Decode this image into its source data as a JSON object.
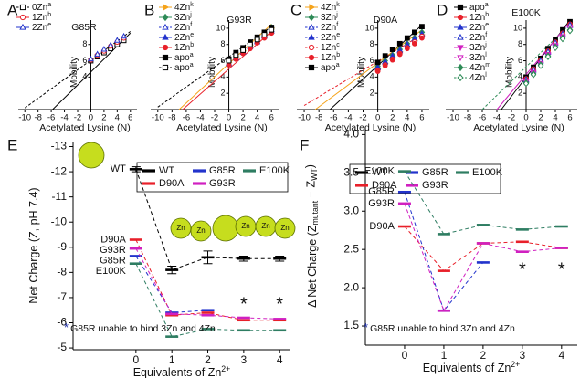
{
  "chart_data": [
    {
      "panel": "A",
      "type": "scatter",
      "title": "G85R",
      "xlabel": "Acetylated Lysine (N)",
      "ylabel": "Mobility",
      "xlim": [
        -11,
        7
      ],
      "ylim": [
        0,
        11
      ],
      "xticks": [
        -10,
        -8,
        -6,
        -4,
        -2,
        0,
        2,
        4,
        6
      ],
      "yticks": [
        4,
        6,
        8
      ],
      "series": [
        {
          "name": "0Zn",
          "note": "a",
          "color": "#000000",
          "marker": "square",
          "filled": false,
          "dash": true,
          "x": [
            0,
            1,
            2,
            3,
            4,
            5
          ],
          "values": [
            6.0,
            6.5,
            7.0,
            7.5,
            8.0,
            8.5
          ]
        },
        {
          "name": "1Zn",
          "note": "b",
          "color": "#e8202a",
          "marker": "circle",
          "filled": false,
          "dash": false,
          "x": [
            0,
            1,
            2,
            3,
            4,
            5
          ],
          "values": [
            6.1,
            6.7,
            7.2,
            7.8,
            8.3,
            8.8
          ]
        },
        {
          "name": "2Zn",
          "note": "e",
          "color": "#2233cc",
          "marker": "triangle",
          "filled": false,
          "dash": false,
          "x": [
            0,
            1,
            2,
            3,
            4,
            5
          ],
          "values": [
            6.2,
            6.8,
            7.4,
            7.9,
            8.5,
            9.0
          ]
        }
      ],
      "fits": [
        {
          "color": "#000000",
          "dash": true,
          "x": [
            -10,
            6
          ],
          "values": [
            0.2,
            9.6
          ]
        },
        {
          "color": "#000000",
          "dash": false,
          "x": [
            -5.8,
            6
          ],
          "values": [
            0,
            9.4
          ]
        }
      ]
    },
    {
      "panel": "B",
      "type": "scatter",
      "title": "G93R",
      "xlabel": "Acetylated Lysine (N)",
      "ylabel": "Mobility",
      "xlim": [
        -11,
        7
      ],
      "ylim": [
        0,
        11
      ],
      "xticks": [
        -10,
        -8,
        -6,
        -4,
        -2,
        0,
        2,
        4,
        6
      ],
      "yticks": [
        2,
        4,
        6,
        8,
        10
      ],
      "series": [
        {
          "name": "4Zn",
          "note": "k",
          "color": "#f5a31a",
          "marker": "right",
          "filled": true,
          "dash": false,
          "x": [
            0,
            1,
            2,
            3,
            4,
            5,
            6
          ],
          "values": [
            5.8,
            6.5,
            7.2,
            7.9,
            8.6,
            9.3,
            10.0
          ]
        },
        {
          "name": "3Zn",
          "note": "j",
          "color": "#2e8b57",
          "marker": "diamond",
          "filled": true,
          "dash": false,
          "x": [
            0,
            1,
            2,
            3,
            4,
            5,
            6
          ],
          "values": [
            5.9,
            6.6,
            7.3,
            8.0,
            8.7,
            9.4,
            10.1
          ]
        },
        {
          "name": "2Zn",
          "note": "f",
          "color": "#2233cc",
          "marker": "triangle",
          "filled": false,
          "dash": true,
          "x": [
            0,
            1,
            2,
            3,
            4,
            5,
            6
          ],
          "values": [
            5.7,
            6.4,
            7.1,
            7.8,
            8.4,
            9.1,
            9.8
          ]
        },
        {
          "name": "2Zn",
          "note": "e",
          "color": "#2233cc",
          "marker": "triangle",
          "filled": true,
          "dash": false,
          "x": [
            0,
            1,
            2,
            3,
            4,
            5,
            6
          ],
          "values": [
            5.6,
            6.3,
            7.0,
            7.7,
            8.3,
            9.0,
            9.6
          ]
        },
        {
          "name": "1Zn",
          "note": "b",
          "color": "#e8202a",
          "marker": "circle",
          "filled": true,
          "dash": false,
          "x": [
            0,
            1,
            2,
            3,
            4,
            5,
            6
          ],
          "values": [
            5.5,
            6.2,
            6.9,
            7.5,
            8.2,
            8.8,
            9.4
          ]
        },
        {
          "name": "apo",
          "note": "a",
          "color": "#000000",
          "marker": "square",
          "filled": true,
          "dash": false,
          "x": [
            0,
            1,
            2,
            3,
            4,
            5,
            6
          ],
          "values": [
            6.2,
            7.0,
            7.6,
            8.3,
            8.9,
            9.5,
            10.1
          ]
        },
        {
          "name": "apo",
          "note": "a",
          "color": "#000000",
          "marker": "square",
          "filled": false,
          "dash": true,
          "x": [
            0,
            1,
            2,
            3,
            4,
            5,
            6
          ],
          "values": [
            6.0,
            6.7,
            7.3,
            8.0,
            8.6,
            9.2,
            9.8
          ]
        }
      ],
      "fits": [
        {
          "color": "#000000",
          "dash": true,
          "x": [
            -10,
            6
          ],
          "values": [
            0.3,
            10.2
          ]
        },
        {
          "color": "#f5a31a",
          "dash": false,
          "x": [
            -7,
            6
          ],
          "values": [
            0,
            10.5
          ]
        },
        {
          "color": "#e8202a",
          "dash": false,
          "x": [
            -6.5,
            6
          ],
          "values": [
            0,
            9.6
          ]
        }
      ]
    },
    {
      "panel": "C",
      "type": "scatter",
      "title": "D90A",
      "xlabel": "Acetylated Lysine (N)",
      "ylabel": "Mobility",
      "xlim": [
        -11,
        7
      ],
      "ylim": [
        0,
        11
      ],
      "xticks": [
        -10,
        -8,
        -6,
        -4,
        -2,
        0,
        2,
        4,
        6
      ],
      "yticks": [
        2,
        4,
        6,
        8,
        10
      ],
      "series": [
        {
          "name": "4Zn",
          "note": "k",
          "color": "#f5a31a",
          "marker": "right",
          "filled": true,
          "dash": false,
          "x": [
            0,
            1,
            2,
            3,
            4,
            5,
            6
          ],
          "values": [
            5.0,
            5.7,
            6.4,
            7.1,
            7.8,
            8.5,
            9.2
          ]
        },
        {
          "name": "3Zn",
          "note": "j",
          "color": "#2e8b57",
          "marker": "diamond",
          "filled": true,
          "dash": false,
          "x": [
            0,
            1,
            2,
            3,
            4,
            5,
            6
          ],
          "values": [
            5.3,
            6.0,
            6.7,
            7.4,
            8.1,
            8.8,
            9.5
          ]
        },
        {
          "name": "2Zn",
          "note": "f",
          "color": "#2233cc",
          "marker": "triangle",
          "filled": false,
          "dash": true,
          "x": [
            0,
            1,
            2,
            3,
            4,
            5,
            6
          ],
          "values": [
            5.2,
            5.9,
            6.6,
            7.3,
            8.0,
            8.7,
            9.3
          ]
        },
        {
          "name": "2Zn",
          "note": "e",
          "color": "#2233cc",
          "marker": "triangle",
          "filled": true,
          "dash": true,
          "x": [
            0,
            1,
            2,
            3,
            4,
            5,
            6
          ],
          "values": [
            5.1,
            5.8,
            6.5,
            7.2,
            7.9,
            8.6,
            9.2
          ]
        },
        {
          "name": "1Zn",
          "note": "c",
          "color": "#e8202a",
          "marker": "circle",
          "filled": false,
          "dash": true,
          "x": [
            0,
            1,
            2,
            3,
            4,
            5,
            6
          ],
          "values": [
            4.8,
            5.5,
            6.2,
            6.9,
            7.6,
            8.3,
            9.0
          ]
        },
        {
          "name": "1Zn",
          "note": "b",
          "color": "#e8202a",
          "marker": "circle",
          "filled": true,
          "dash": false,
          "x": [
            0,
            1,
            2,
            3,
            4,
            5,
            6
          ],
          "values": [
            4.7,
            5.4,
            6.1,
            6.8,
            7.5,
            8.1,
            8.8
          ]
        },
        {
          "name": "apo",
          "note": "a",
          "color": "#000000",
          "marker": "square",
          "filled": true,
          "dash": false,
          "x": [
            0,
            1,
            2,
            3,
            4,
            5,
            6
          ],
          "values": [
            5.8,
            6.6,
            7.4,
            8.1,
            8.8,
            9.5,
            10.2
          ]
        }
      ],
      "fits": [
        {
          "color": "#000000",
          "dash": false,
          "x": [
            -6.5,
            6
          ],
          "values": [
            0,
            10.4
          ]
        },
        {
          "color": "#f5a31a",
          "dash": false,
          "x": [
            -8.5,
            6
          ],
          "values": [
            0,
            9.8
          ]
        },
        {
          "color": "#e8202a",
          "dash": true,
          "x": [
            -10,
            6
          ],
          "values": [
            0.5,
            9.2
          ]
        }
      ]
    },
    {
      "panel": "D",
      "type": "scatter",
      "title": "E100K",
      "xlabel": "Acetylated Lysine (N)",
      "ylabel": "Mobility",
      "xlim": [
        -11,
        7
      ],
      "ylim": [
        0,
        11
      ],
      "xticks": [
        -10,
        -8,
        -6,
        -4,
        -2,
        0,
        2,
        4,
        6
      ],
      "yticks": [
        2,
        4,
        6,
        8,
        10
      ],
      "series": [
        {
          "name": "apo",
          "note": "a",
          "color": "#000000",
          "marker": "square",
          "filled": true,
          "dash": false,
          "x": [
            0,
            1,
            2,
            3,
            4,
            5,
            6
          ],
          "values": [
            4.0,
            5.2,
            6.3,
            7.5,
            8.6,
            9.8,
            10.8
          ]
        },
        {
          "name": "1Zn",
          "note": "b",
          "color": "#e8202a",
          "marker": "circle",
          "filled": true,
          "dash": false,
          "x": [
            0,
            1,
            2,
            3,
            4,
            5,
            6
          ],
          "values": [
            3.8,
            5.0,
            6.1,
            7.2,
            8.3,
            9.4,
            10.5
          ]
        },
        {
          "name": "2Zn",
          "note": "e",
          "color": "#2233cc",
          "marker": "triangle",
          "filled": true,
          "dash": false,
          "x": [
            0,
            1,
            2,
            3,
            4,
            5,
            6
          ],
          "values": [
            3.6,
            4.8,
            5.9,
            7.0,
            8.1,
            9.2,
            10.3
          ]
        },
        {
          "name": "2Zn",
          "note": "f",
          "color": "#2233cc",
          "marker": "triangle",
          "filled": false,
          "dash": true,
          "x": [
            0,
            1,
            2,
            3,
            4,
            5,
            6
          ],
          "values": [
            3.7,
            4.9,
            6.0,
            7.1,
            8.2,
            9.3,
            10.4
          ]
        },
        {
          "name": "3Zn",
          "note": "j",
          "color": "#d020c0",
          "marker": "down",
          "filled": true,
          "dash": false,
          "x": [
            0,
            1,
            2,
            3,
            4,
            5,
            6
          ],
          "values": [
            3.5,
            4.6,
            5.7,
            6.8,
            7.9,
            9.0,
            10.1
          ]
        },
        {
          "name": "3Zn",
          "note": "l",
          "color": "#d020c0",
          "marker": "down",
          "filled": false,
          "dash": true,
          "x": [
            0,
            1,
            2,
            3,
            4,
            5,
            6
          ],
          "values": [
            3.4,
            4.5,
            5.6,
            6.7,
            7.8,
            8.9,
            10.0
          ]
        },
        {
          "name": "4Zn",
          "note": "m",
          "color": "#2e8b57",
          "marker": "diamond",
          "filled": true,
          "dash": false,
          "x": [
            0,
            1,
            2,
            3,
            4,
            5,
            6
          ],
          "values": [
            3.3,
            4.4,
            5.5,
            6.6,
            7.7,
            8.8,
            9.8
          ]
        },
        {
          "name": "4Zn",
          "note": "l",
          "color": "#2e8b57",
          "marker": "diamond",
          "filled": false,
          "dash": true,
          "x": [
            0,
            1,
            2,
            3,
            4,
            5,
            6
          ],
          "values": [
            3.2,
            4.3,
            5.4,
            6.5,
            7.6,
            8.7,
            9.7
          ]
        }
      ],
      "fits": [
        {
          "color": "#000000",
          "dash": false,
          "x": [
            -3.4,
            6
          ],
          "values": [
            0,
            11
          ]
        },
        {
          "color": "#2e8b57",
          "dash": true,
          "x": [
            -6,
            6
          ],
          "values": [
            0,
            10.5
          ]
        },
        {
          "color": "#d020c0",
          "dash": false,
          "x": [
            -4,
            6
          ],
          "values": [
            0,
            10.8
          ]
        }
      ]
    },
    {
      "panel": "E",
      "type": "line",
      "ylabel": "Net Charge (Z, pH 7.4)",
      "xlabel": [
        "Equivalents of Zn",
        "2+"
      ],
      "x": [
        0,
        1,
        2,
        3,
        4
      ],
      "xlim": [
        -1.75,
        4.3
      ],
      "xticks": [
        0,
        1,
        2,
        3,
        4
      ],
      "ylim": [
        -4.93,
        -13.2
      ],
      "yticks": [
        -13,
        -12,
        -11,
        -10,
        -9,
        -8,
        -7,
        -6,
        -5
      ],
      "series": [
        {
          "name": "WT",
          "color": "#000000",
          "values": [
            -12.1,
            -8.1,
            -8.6,
            -8.55,
            -8.55
          ],
          "errors": [
            0.1,
            0.15,
            0.25,
            0.1,
            0.1
          ]
        },
        {
          "name": "D90A",
          "color": "#e8202a",
          "values": [
            -9.3,
            -6.3,
            -6.4,
            -6.1,
            -6.1
          ]
        },
        {
          "name": "G85R",
          "color": "#2233cc",
          "values": [
            -8.65,
            -6.4,
            -6.5,
            null,
            null
          ]
        },
        {
          "name": "G93R",
          "color": "#d020c0",
          "values": [
            -8.95,
            -6.35,
            -6.3,
            -6.2,
            -6.15
          ]
        },
        {
          "name": "E100K",
          "color": "#2e7d62",
          "values": [
            -8.35,
            -5.45,
            -5.75,
            -5.7,
            -5.7
          ]
        }
      ],
      "asterisk": "*",
      "asterisk_x": [
        3,
        4
      ],
      "note": "G85R unable to bind 3Zn and 4Zn",
      "cartoon_text": "Zn"
    },
    {
      "panel": "F",
      "type": "line",
      "ylabel": [
        "Δ Net Charge (Z",
        "mutant",
        " − Z",
        "WT",
        ")"
      ],
      "xlabel": [
        "Equivalents of Zn",
        "2+"
      ],
      "x": [
        0,
        1,
        2,
        3,
        4
      ],
      "xlim": [
        -1,
        4.4
      ],
      "xticks": [
        0,
        1,
        2,
        3,
        4
      ],
      "ylim": [
        1.25,
        4.1
      ],
      "yticks": [
        1.5,
        {
          "value": 2,
          "label": "2.0"
        },
        2.5,
        {
          "value": 3,
          "label": "3.0"
        },
        3.5,
        {
          "value": 4,
          "label": "4.0"
        }
      ],
      "series": [
        {
          "name": "WT",
          "color": "#000000",
          "values": [
            null,
            null,
            null,
            null,
            null
          ]
        },
        {
          "name": "D90A",
          "color": "#e8202a",
          "values": [
            2.8,
            2.22,
            2.58,
            2.6,
            2.52
          ]
        },
        {
          "name": "G85R",
          "color": "#2233cc",
          "values": [
            3.25,
            1.7,
            2.33,
            null,
            null
          ]
        },
        {
          "name": "G93R",
          "color": "#d020c0",
          "values": [
            3.1,
            1.7,
            2.58,
            2.47,
            2.52
          ]
        },
        {
          "name": "E100K",
          "color": "#2e7d62",
          "values": [
            3.52,
            2.7,
            2.82,
            2.76,
            2.8
          ]
        }
      ],
      "asterisk": "*",
      "asterisk_x": [
        3,
        4
      ],
      "note": "G85R unable to bind 3Zn and 4Zn"
    }
  ]
}
